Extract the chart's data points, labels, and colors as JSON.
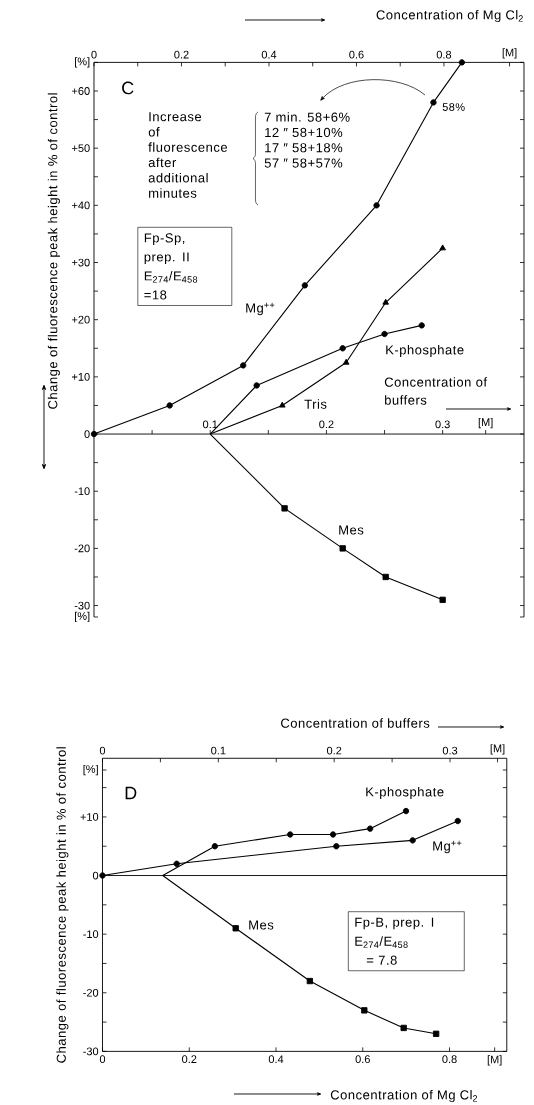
{
  "chart_data": [
    {
      "type": "line",
      "xlabel": "Concentration of buffers",
      "x2label": "Concentration of Mg Cl$_{2}$",
      "ylabel": "Change of fluorescence peak height in % of control",
      "xlim": [
        0,
        0.37
      ],
      "xticks": [
        {
          "value": 0.05,
          "label": null
        },
        0.1,
        {
          "value": 0.15,
          "label": null
        },
        0.2,
        {
          "value": 0.25,
          "label": null
        },
        0.3,
        {
          "value": 0.337,
          "label": "[M]"
        }
      ],
      "x2lim": [
        0,
        0.983
      ],
      "x2ticks": [
        0,
        {
          "value": 0.1,
          "label": null
        },
        0.2,
        {
          "value": 0.3,
          "label": null
        },
        0.4,
        {
          "value": 0.5,
          "label": null
        },
        0.6,
        {
          "value": 0.7,
          "label": null
        },
        0.8,
        {
          "value": 0.95,
          "label": "[M]"
        }
      ],
      "ylim": [
        -32,
        65
      ],
      "yticks": [
        {
          "value": 65,
          "label": "[%]"
        },
        {
          "value": 60,
          "label": "+60"
        },
        {
          "value": 55,
          "label": null
        },
        {
          "value": 50,
          "label": "+50"
        },
        {
          "value": 45,
          "label": null
        },
        {
          "value": 40,
          "label": "+40"
        },
        {
          "value": 35,
          "label": null
        },
        {
          "value": 30,
          "label": "+30"
        },
        {
          "value": 25,
          "label": null
        },
        {
          "value": 20,
          "label": "+20"
        },
        {
          "value": 15,
          "label": null
        },
        {
          "value": 10,
          "label": "+10"
        },
        {
          "value": 5,
          "label": null
        },
        0,
        {
          "value": -5,
          "label": null
        },
        -10,
        {
          "value": -15,
          "label": null
        },
        -20,
        {
          "value": -25,
          "label": null
        },
        -30,
        {
          "value": -32,
          "label": "[%]"
        }
      ],
      "annotations": [
        "C",
        "Increase of fluorescence after additional minutes",
        "7 min. 58+6%",
        "12 ″ 58+10%",
        "17 ″ 58+18%",
        "57 ″ 58+57%",
        "58%",
        "Fp-Sp,",
        "prep. II",
        "E$_{274}$/E$_{458}$",
        "=18"
      ],
      "series": [
        {
          "name": "Mg$^{++}$",
          "axis": "x2",
          "color": "#000000",
          "marker": "circle",
          "x": [
            0,
            0.173,
            0.341,
            0.482,
            0.646,
            0.776,
            0.841
          ],
          "values": [
            0,
            5,
            12,
            26,
            40,
            58,
            65
          ]
        },
        {
          "name": "K-phosphate",
          "color": "#000000",
          "marker": "circle",
          "x": [
            0.1,
            0.14,
            0.214,
            0.25,
            0.282
          ],
          "values": [
            0,
            8.5,
            15,
            17.5,
            19
          ]
        },
        {
          "name": "Tris",
          "color": "#000000",
          "marker": "triangle",
          "x": [
            0.1,
            0.162,
            0.217,
            0.251,
            0.3
          ],
          "values": [
            0,
            5,
            12.5,
            23,
            32.5
          ]
        },
        {
          "name": "Mes",
          "color": "#000000",
          "marker": "square",
          "x": [
            0.1,
            0.164,
            0.214,
            0.251,
            0.3
          ],
          "values": [
            0,
            -13,
            -20,
            -25,
            -29
          ]
        }
      ]
    },
    {
      "type": "line",
      "xlabel": "Concentration of Mg Cl$_{2}$",
      "x2label": "Concentration of buffers",
      "ylabel": "Change of fluorescence peak height in % of control",
      "xlim": [
        0,
        0.932
      ],
      "xticks": [
        0,
        0.2,
        0.4,
        0.6,
        0.8,
        {
          "value": 0.904,
          "label": "[M]"
        }
      ],
      "x2lim": [
        0,
        0.349
      ],
      "x2ticks": [
        0,
        {
          "value": 0.05,
          "label": null
        },
        0.1,
        {
          "value": 0.15,
          "label": null
        },
        0.2,
        {
          "value": 0.25,
          "label": null
        },
        0.3,
        {
          "value": 0.341,
          "label": "[M]"
        }
      ],
      "ylim": [
        -30,
        20
      ],
      "yticks": [
        {
          "value": 18,
          "label": "[%]"
        },
        {
          "value": 15,
          "label": null
        },
        {
          "value": 10,
          "label": "+10"
        },
        {
          "value": 5,
          "label": null
        },
        0,
        {
          "value": -5,
          "label": null
        },
        -10,
        {
          "value": -15,
          "label": null
        },
        -20,
        {
          "value": -25,
          "label": null
        },
        -30
      ],
      "ref_lines": [
        {
          "axis": "y",
          "value": 0
        }
      ],
      "annotations": [
        "D",
        "Fp-B, prep. I",
        "E$_{274}$/E$_{458}$",
        "= 7.8"
      ],
      "series": [
        {
          "name": "Mg$^{++}$",
          "color": "#000000",
          "marker": "circle",
          "x": [
            0,
            0.171,
            0.539,
            0.715,
            0.819
          ],
          "values": [
            0,
            2,
            5,
            6,
            9.3
          ]
        },
        {
          "name": "K-phosphate",
          "axis": "x2",
          "color": "#000000",
          "marker": "circle",
          "x": [
            0.052,
            0.097,
            0.162,
            0.199,
            0.231,
            0.262
          ],
          "values": [
            0,
            5,
            7,
            7,
            8,
            11
          ]
        },
        {
          "name": "Mes",
          "axis": "x2",
          "color": "#000000",
          "marker": "square",
          "x": [
            0.052,
            0.115,
            0.179,
            0.226,
            0.26,
            0.288
          ],
          "values": [
            0,
            -9,
            -18,
            -23,
            -26,
            -27
          ]
        }
      ]
    }
  ]
}
